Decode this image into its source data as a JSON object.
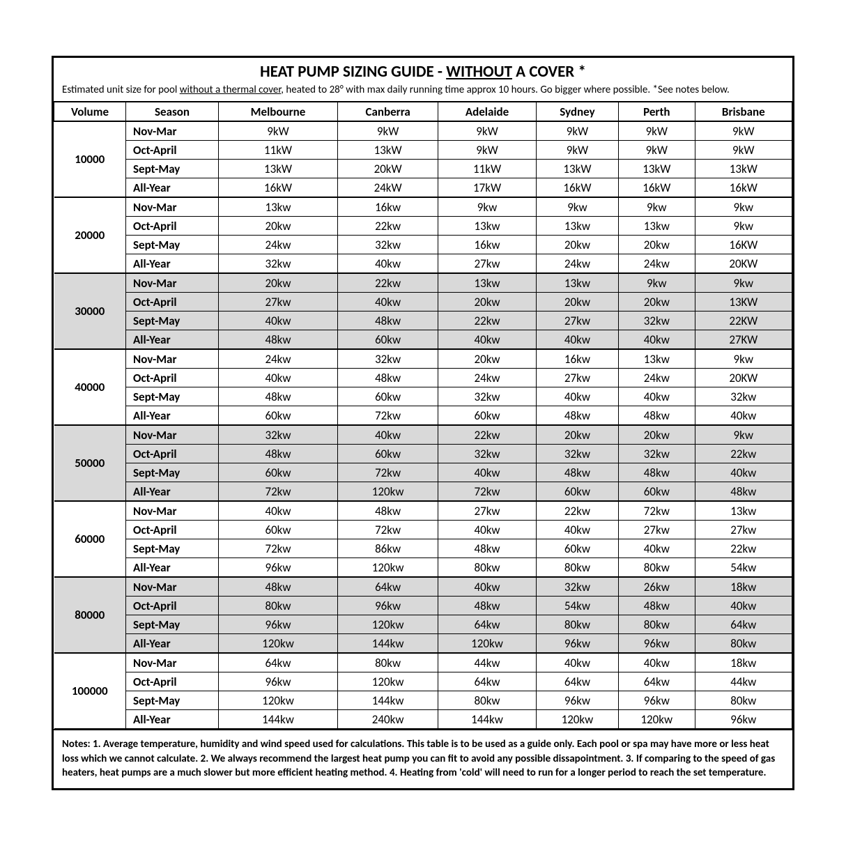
{
  "title_prefix": "HEAT PUMP SIZING GUIDE - ",
  "title_underlined": "WITHOUT",
  "title_suffix": " A COVER *",
  "subtitle_prefix": "Estimated unit size for pool ",
  "subtitle_underlined": "without a thermal cover",
  "subtitle_suffix": ", heated to 28° with max daily running time approx 10 hours. Go bigger where possible. *See notes below.",
  "columns": [
    "Volume",
    "Season",
    "Melbourne",
    "Canberra",
    "Adelaide",
    "Sydney",
    "Perth",
    "Brisbane"
  ],
  "groups": [
    {
      "volume": "10000",
      "shaded": false,
      "rows": [
        {
          "season": "Nov-Mar",
          "values": [
            "9kW",
            "9kW",
            "9kW",
            "9kW",
            "9kW",
            "9kW"
          ]
        },
        {
          "season": "Oct-April",
          "values": [
            "11kW",
            "13kW",
            "9kW",
            "9kW",
            "9kW",
            "9kW"
          ]
        },
        {
          "season": "Sept-May",
          "values": [
            "13kW",
            "20kW",
            "11kW",
            "13kW",
            "13kW",
            "13kW"
          ]
        },
        {
          "season": "All-Year",
          "values": [
            "16kW",
            "24kW",
            "17kW",
            "16kW",
            "16kW",
            "16kW"
          ]
        }
      ]
    },
    {
      "volume": "20000",
      "shaded": false,
      "rows": [
        {
          "season": "Nov-Mar",
          "values": [
            "13kw",
            "16kw",
            "9kw",
            "9kw",
            "9kw",
            "9kw"
          ]
        },
        {
          "season": "Oct-April",
          "values": [
            "20kw",
            "22kw",
            "13kw",
            "13kw",
            "13kw",
            "9kw"
          ]
        },
        {
          "season": "Sept-May",
          "values": [
            "24kw",
            "32kw",
            "16kw",
            "20kw",
            "20kw",
            "16KW"
          ]
        },
        {
          "season": "All-Year",
          "values": [
            "32kw",
            "40kw",
            "27kw",
            "24kw",
            "24kw",
            "20KW"
          ]
        }
      ]
    },
    {
      "volume": "30000",
      "shaded": true,
      "rows": [
        {
          "season": "Nov-Mar",
          "values": [
            "20kw",
            "22kw",
            "13kw",
            "13kw",
            "9kw",
            "9kw"
          ]
        },
        {
          "season": "Oct-April",
          "values": [
            "27kw",
            "40kw",
            "20kw",
            "20kw",
            "20kw",
            "13KW"
          ]
        },
        {
          "season": "Sept-May",
          "values": [
            "40kw",
            "48kw",
            "22kw",
            "27kw",
            "32kw",
            "22KW"
          ]
        },
        {
          "season": "All-Year",
          "values": [
            "48kw",
            "60kw",
            "40kw",
            "40kw",
            "40kw",
            "27KW"
          ]
        }
      ]
    },
    {
      "volume": "40000",
      "shaded": false,
      "rows": [
        {
          "season": "Nov-Mar",
          "values": [
            "24kw",
            "32kw",
            "20kw",
            "16kw",
            "13kw",
            "9kw"
          ]
        },
        {
          "season": "Oct-April",
          "values": [
            "40kw",
            "48kw",
            "24kw",
            "27kw",
            "24kw",
            "20KW"
          ]
        },
        {
          "season": "Sept-May",
          "values": [
            "48kw",
            "60kw",
            "32kw",
            "40kw",
            "40kw",
            "32kw"
          ]
        },
        {
          "season": "All-Year",
          "values": [
            "60kw",
            "72kw",
            "60kw",
            "48kw",
            "48kw",
            "40kw"
          ]
        }
      ]
    },
    {
      "volume": "50000",
      "shaded": true,
      "rows": [
        {
          "season": "Nov-Mar",
          "values": [
            "32kw",
            "40kw",
            "22kw",
            "20kw",
            "20kw",
            "9kw"
          ]
        },
        {
          "season": "Oct-April",
          "values": [
            "48kw",
            "60kw",
            "32kw",
            "32kw",
            "32kw",
            "22kw"
          ]
        },
        {
          "season": "Sept-May",
          "values": [
            "60kw",
            "72kw",
            "40kw",
            "48kw",
            "48kw",
            "40kw"
          ]
        },
        {
          "season": "All-Year",
          "values": [
            "72kw",
            "120kw",
            "72kw",
            "60kw",
            "60kw",
            "48kw"
          ]
        }
      ]
    },
    {
      "volume": "60000",
      "shaded": false,
      "rows": [
        {
          "season": "Nov-Mar",
          "values": [
            "40kw",
            "48kw",
            "27kw",
            "22kw",
            "72kw",
            "13kw"
          ]
        },
        {
          "season": "Oct-April",
          "values": [
            "60kw",
            "72kw",
            "40kw",
            "40kw",
            "27kw",
            "27kw"
          ]
        },
        {
          "season": "Sept-May",
          "values": [
            "72kw",
            "86kw",
            "48kw",
            "60kw",
            "40kw",
            "22kw"
          ]
        },
        {
          "season": "All-Year",
          "values": [
            "96kw",
            "120kw",
            "80kw",
            "80kw",
            "80kw",
            "54kw"
          ]
        }
      ]
    },
    {
      "volume": "80000",
      "shaded": true,
      "rows": [
        {
          "season": "Nov-Mar",
          "values": [
            "48kw",
            "64kw",
            "40kw",
            "32kw",
            "26kw",
            "18kw"
          ]
        },
        {
          "season": "Oct-April",
          "values": [
            "80kw",
            "96kw",
            "48kw",
            "54kw",
            "48kw",
            "40kw"
          ]
        },
        {
          "season": "Sept-May",
          "values": [
            "96kw",
            "120kw",
            "64kw",
            "80kw",
            "80kw",
            "64kw"
          ]
        },
        {
          "season": "All-Year",
          "values": [
            "120kw",
            "144kw",
            "120kw",
            "96kw",
            "96kw",
            "80kw"
          ]
        }
      ]
    },
    {
      "volume": "100000",
      "shaded": false,
      "rows": [
        {
          "season": "Nov-Mar",
          "values": [
            "64kw",
            "80kw",
            "44kw",
            "40kw",
            "40kw",
            "18kw"
          ]
        },
        {
          "season": "Oct-April",
          "values": [
            "96kw",
            "120kw",
            "64kw",
            "64kw",
            "64kw",
            "44kw"
          ]
        },
        {
          "season": "Sept-May",
          "values": [
            "120kw",
            "144kw",
            "80kw",
            "96kw",
            "96kw",
            "80kw"
          ]
        },
        {
          "season": "All-Year",
          "values": [
            "144kw",
            "240kw",
            "144kw",
            "120kw",
            "120kw",
            "96kw"
          ]
        }
      ]
    }
  ],
  "notes": "Notes: 1. Average temperature, humidity and wind speed used for calculations. This table is to be used as a guide only. Each pool or spa may have more or less heat loss which we cannot calculate. 2. We always recommend the largest heat pump you can fit to avoid any possible dissapointment. 3. If comparing to the speed of gas heaters, heat pumps are a much slower but more efficient heating method. 4. Heating from 'cold' will need to run for a longer period to reach the set temperature.",
  "colors": {
    "background": "#ffffff",
    "border": "#000000",
    "shaded_row": "#d9d9d9",
    "text": "#000000"
  },
  "typography": {
    "title_fontsize": 23,
    "body_fontsize": 17,
    "notes_fontsize": 15,
    "font_family": "Calibri"
  }
}
